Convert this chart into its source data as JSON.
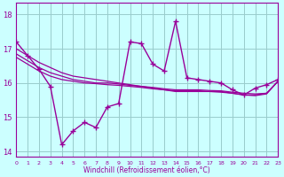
{
  "x": [
    0,
    1,
    2,
    3,
    4,
    5,
    6,
    7,
    8,
    9,
    10,
    11,
    12,
    13,
    14,
    15,
    16,
    17,
    18,
    19,
    20,
    21,
    22,
    23
  ],
  "windchill": [
    17.2,
    16.8,
    16.4,
    15.9,
    14.2,
    14.6,
    14.85,
    14.7,
    15.3,
    15.4,
    17.2,
    17.15,
    16.55,
    16.35,
    17.8,
    16.15,
    16.1,
    16.05,
    16.0,
    15.8,
    15.65,
    15.85,
    15.95,
    16.1
  ],
  "line_top": [
    17.0,
    16.8,
    16.6,
    16.45,
    16.3,
    16.2,
    16.15,
    16.1,
    16.05,
    16.0,
    15.95,
    15.9,
    15.85,
    15.8,
    15.75,
    15.75,
    15.75,
    15.75,
    15.75,
    15.7,
    15.65,
    15.65,
    15.7,
    16.05
  ],
  "line_mid": [
    16.85,
    16.65,
    16.45,
    16.3,
    16.2,
    16.1,
    16.05,
    16.0,
    16.0,
    15.97,
    15.93,
    15.9,
    15.87,
    15.83,
    15.8,
    15.8,
    15.8,
    15.78,
    15.77,
    15.73,
    15.7,
    15.68,
    15.7,
    16.05
  ],
  "line_bot": [
    16.75,
    16.55,
    16.35,
    16.2,
    16.1,
    16.05,
    16.0,
    15.98,
    15.95,
    15.93,
    15.9,
    15.87,
    15.83,
    15.8,
    15.77,
    15.77,
    15.77,
    15.75,
    15.73,
    15.7,
    15.65,
    15.63,
    15.68,
    16.05
  ],
  "line_color": "#990099",
  "bg_color": "#ccffff",
  "grid_color": "#99cccc",
  "xlabel": "Windchill (Refroidissement éolien,°C)",
  "yticks": [
    14,
    15,
    16,
    17,
    18
  ],
  "xlim": [
    0,
    23
  ],
  "ylim": [
    13.85,
    18.35
  ]
}
